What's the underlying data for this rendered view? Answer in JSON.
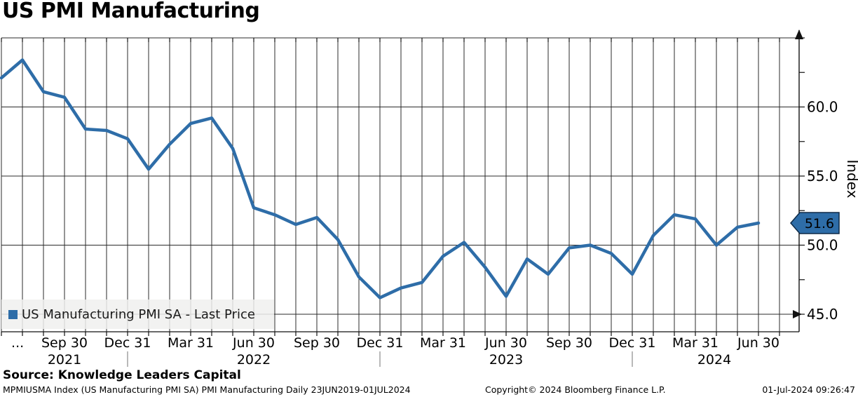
{
  "header": {
    "title": "US PMI Manufacturing"
  },
  "chart_data": {
    "type": "line",
    "title": "US PMI Manufacturing",
    "ylabel": "Index",
    "ylim": [
      43.7,
      65.2
    ],
    "grid": "monthly vertical gridlines; horizontal gridlines every 5 points",
    "legend_position": "bottom-left",
    "line_color": "#2E6DA8",
    "last_price_label": "51.6",
    "y_ticks": [
      {
        "value": 45,
        "label": "45.0"
      },
      {
        "value": 50,
        "label": "50.0"
      },
      {
        "value": 55,
        "label": "55.0"
      },
      {
        "value": 60,
        "label": "60.0"
      }
    ],
    "y_gridlines": [
      45,
      50,
      55,
      60,
      65
    ],
    "y_minor_tick_step": 2.5,
    "categories": [
      "2021-06",
      "2021-07",
      "2021-08",
      "2021-09",
      "2021-10",
      "2021-11",
      "2021-12",
      "2022-01",
      "2022-02",
      "2022-03",
      "2022-04",
      "2022-05",
      "2022-06",
      "2022-07",
      "2022-08",
      "2022-09",
      "2022-10",
      "2022-11",
      "2022-12",
      "2023-01",
      "2023-02",
      "2023-03",
      "2023-04",
      "2023-05",
      "2023-06",
      "2023-07",
      "2023-08",
      "2023-09",
      "2023-10",
      "2023-11",
      "2023-12",
      "2024-01",
      "2024-02",
      "2024-03",
      "2024-04",
      "2024-05",
      "2024-06"
    ],
    "series": [
      {
        "name": "US Manufacturing PMI SA - Last Price",
        "values": [
          62.1,
          63.4,
          61.1,
          60.7,
          58.4,
          58.3,
          57.7,
          55.5,
          57.3,
          58.8,
          59.2,
          57.0,
          52.7,
          52.2,
          51.5,
          52.0,
          50.4,
          47.7,
          46.2,
          46.9,
          47.3,
          49.2,
          50.2,
          48.4,
          46.3,
          49.0,
          47.9,
          49.8,
          50.0,
          49.4,
          47.9,
          50.7,
          52.2,
          51.9,
          50.0,
          51.3,
          51.6
        ]
      }
    ],
    "x_ticks": [
      {
        "i": 0.77,
        "label": "..."
      },
      {
        "i": 3,
        "label": "Sep 30"
      },
      {
        "i": 6,
        "label": "Dec 31"
      },
      {
        "i": 9,
        "label": "Mar 31"
      },
      {
        "i": 12,
        "label": "Jun 30"
      },
      {
        "i": 15,
        "label": "Sep 30"
      },
      {
        "i": 18,
        "label": "Dec 31"
      },
      {
        "i": 21,
        "label": "Mar 31"
      },
      {
        "i": 24,
        "label": "Jun 30"
      },
      {
        "i": 27,
        "label": "Sep 30"
      },
      {
        "i": 30,
        "label": "Dec 31"
      },
      {
        "i": 33,
        "label": "Mar 31"
      },
      {
        "i": 36,
        "label": "Jun 30"
      }
    ],
    "year_labels": [
      {
        "i": 3,
        "label": "2021"
      },
      {
        "i": 12,
        "label": "2022"
      },
      {
        "i": 24,
        "label": "2023"
      },
      {
        "i": 33.9,
        "label": "2024"
      }
    ],
    "year_separators_at": [
      6,
      18,
      30
    ]
  },
  "legend": {
    "label": "US Manufacturing PMI SA - Last Price",
    "marker_color": "#2E6DA8"
  },
  "badge": {
    "value": "51.6",
    "bg": "#2E6DA8",
    "text_color": "#ffffff"
  },
  "footer": {
    "source": "Source: Knowledge Leaders Capital",
    "meta": "MPMIUSMA Index (US Manufacturing PMI SA) PMI Manufacturing  Daily 23JUN2019-01JUL2024",
    "copyright": "Copyright© 2024 Bloomberg Finance L.P.",
    "timestamp": "01-Jul-2024 09:26:47"
  },
  "colors": {
    "line": "#2E6DA8",
    "grid": "#2b2b2b",
    "axis": "#111111",
    "legend_bg": "#F0F0EE",
    "year_separator": "#8a8a8a"
  }
}
